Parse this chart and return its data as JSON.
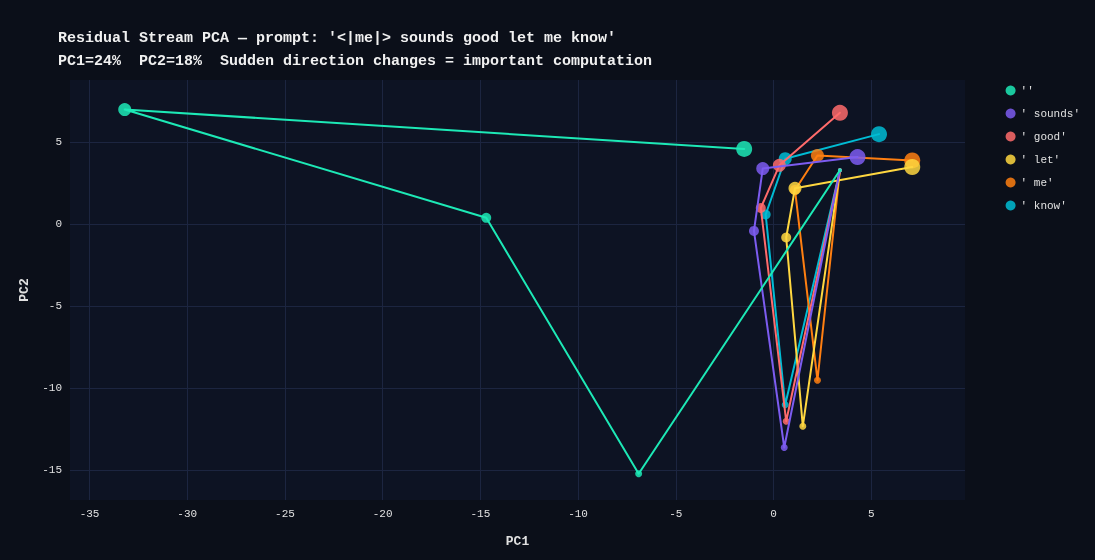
{
  "chart_data": {
    "type": "line",
    "title": "Residual Stream PCA — prompt: '<|me|> sounds good let me know'",
    "subtitle": "PC1=24%  PC2=18%  Sudden direction changes = important computation",
    "xlabel": "PC1",
    "ylabel": "PC2",
    "series": [
      {
        "name": "''",
        "color": "#1de9b6",
        "x": [
          3.4,
          -6.9,
          -14.7,
          -33.2,
          -1.5
        ],
        "values": [
          3.3,
          -15.2,
          0.4,
          7.0,
          4.6
        ]
      },
      {
        "name": "' sounds'",
        "color": "#7c5cf0",
        "x": [
          3.4,
          0.55,
          -1.0,
          -0.55,
          4.3
        ],
        "values": [
          3.3,
          -13.6,
          -0.4,
          3.4,
          4.1
        ]
      },
      {
        "name": "' good'",
        "color": "#ff6b6b",
        "x": [
          3.4,
          0.65,
          -0.65,
          0.3,
          3.4
        ],
        "values": [
          3.3,
          -12.0,
          1.0,
          3.6,
          6.8
        ]
      },
      {
        "name": "' let'",
        "color": "#ffd740",
        "x": [
          3.4,
          1.5,
          0.65,
          1.1,
          7.1
        ],
        "values": [
          3.3,
          -12.3,
          -0.8,
          2.2,
          3.5
        ]
      },
      {
        "name": "' me'",
        "color": "#ff7f11",
        "x": [
          3.4,
          2.25,
          1.1,
          2.25,
          7.1
        ],
        "values": [
          3.3,
          -9.5,
          2.1,
          4.2,
          3.9
        ]
      },
      {
        "name": "' know'",
        "color": "#00bcd4",
        "x": [
          3.4,
          0.6,
          -0.4,
          0.6,
          5.4
        ],
        "values": [
          3.3,
          -11.0,
          0.6,
          4.0,
          5.5
        ]
      }
    ],
    "xlim": [
      -36,
      9.8
    ],
    "xticks": [
      -35,
      -30,
      -25,
      -20,
      -15,
      -10,
      -5,
      0,
      5
    ],
    "ylim": [
      -16.8,
      8.8
    ],
    "yticks": [
      -15,
      -10,
      -5,
      0,
      5
    ],
    "grid": true,
    "legend": "right",
    "marker": "circle",
    "line_style": "solid"
  }
}
